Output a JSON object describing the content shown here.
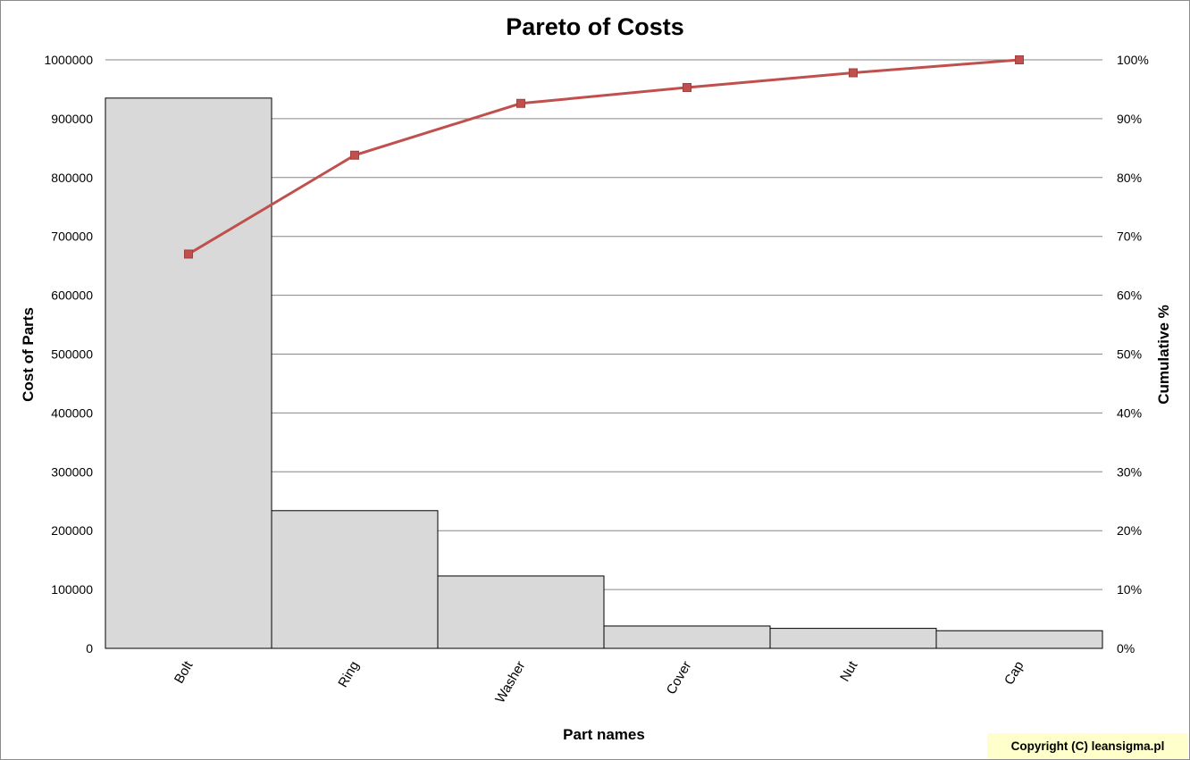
{
  "chart_data": {
    "type": "bar",
    "title": "Pareto of Costs",
    "xlabel": "Part names",
    "ylabel": "Cost of Parts",
    "y2label": "Cumulative %",
    "categories": [
      "Bolt",
      "Ring",
      "Washer",
      "Cover",
      "Nut",
      "Cap"
    ],
    "series": [
      {
        "type": "bar",
        "values": [
          935000,
          234000,
          123000,
          38000,
          34000,
          30000
        ]
      },
      {
        "type": "line",
        "axis": "right",
        "values": [
          67.0,
          83.8,
          92.6,
          95.3,
          97.8,
          100.0
        ]
      }
    ],
    "ylim": [
      0,
      1000000
    ],
    "y2lim": [
      0,
      100
    ],
    "yticks": [
      "0",
      "100000",
      "200000",
      "300000",
      "400000",
      "500000",
      "600000",
      "700000",
      "800000",
      "900000",
      "1000000"
    ],
    "y2ticks": [
      "0%",
      "10%",
      "20%",
      "30%",
      "40%",
      "50%",
      "60%",
      "70%",
      "80%",
      "90%",
      "100%"
    ],
    "grid": true,
    "legend": "none",
    "colors": {
      "bar_fill": "#d9d9d9",
      "bar_stroke": "#000000",
      "line": "#c0504d",
      "grid": "#868686"
    }
  },
  "footer": {
    "copyright": "Copyright (C) leansigma.pl"
  }
}
